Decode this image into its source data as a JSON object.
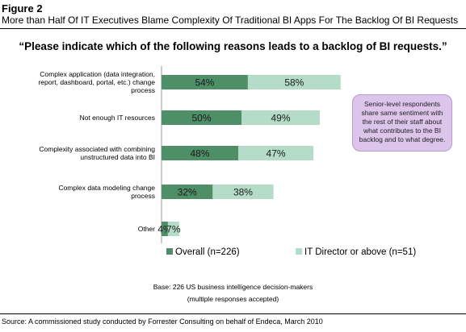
{
  "figure_label": "Figure 2",
  "figure_title": "More than Half Of IT Executives Blame Complexity Of Traditional BI Apps For The Backlog Of BI Requests",
  "callout": "Senior-level respondents share same sentiment with the rest of their staff about what contributes to the BI backlog and to what degree.",
  "base_line1": "Base: 226 US business intelligence decision-makers",
  "base_line2": "(multiple responses accepted)",
  "source": "Source: A commissioned study conducted by Forrester Consulting on behalf of Endeca, March 2010",
  "colors": {
    "overall": "#4e8f68",
    "director": "#b5dcc8"
  },
  "chart_data": {
    "type": "bar",
    "orientation": "horizontal",
    "stacked": true,
    "title": "“Please indicate which of the following reasons leads to a backlog of BI requests.”",
    "categories": [
      [
        "Complex application (data integration,",
        "report, dashboard, portal, etc.) change",
        "process"
      ],
      [
        "Not enough IT resources"
      ],
      [
        "Complexity associated with combining",
        "unstructured data into BI"
      ],
      [
        "Complex data modeling change",
        "process"
      ],
      [
        "Other"
      ]
    ],
    "series": [
      {
        "name": "Overall (n=226)",
        "values": [
          54,
          50,
          48,
          32,
          4
        ]
      },
      {
        "name": "IT Director or above (n=51)",
        "values": [
          58,
          49,
          47,
          38,
          7
        ]
      }
    ],
    "value_suffix": "%",
    "legend": "bottom",
    "grid": false
  }
}
